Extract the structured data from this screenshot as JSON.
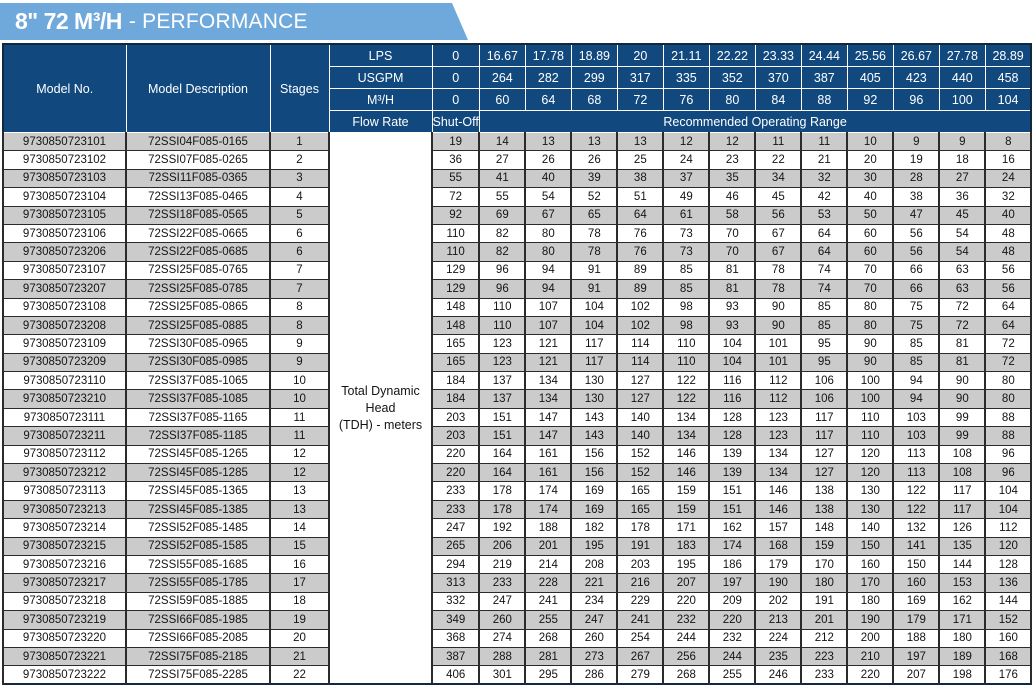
{
  "banner": {
    "title": "8\" 72 M³/H",
    "suffix": "- PERFORMANCE"
  },
  "colors": {
    "banner_blue": "#6FA9DC",
    "header_navy": "#11497F",
    "row_gray": "#CBCBCB",
    "row_white": "#FFFFFF",
    "grid_line": "#2B2B2B",
    "header_text": "#FFFFFF"
  },
  "header": {
    "model_no": "Model No.",
    "model_description": "Model Description",
    "stages": "Stages",
    "flow_rate": "Flow Rate",
    "shut_off": "Shut-Off",
    "recommended_range": "Recommended Operating Range",
    "tdh_line1": "Total Dynamic Head",
    "tdh_line2": "(TDH) - meters",
    "unit_rows": [
      {
        "label": "LPS",
        "values": [
          "0",
          "16.67",
          "17.78",
          "18.89",
          "20",
          "21.11",
          "22.22",
          "23.33",
          "24.44",
          "25.56",
          "26.67",
          "27.78",
          "28.89"
        ]
      },
      {
        "label": "USGPM",
        "values": [
          "0",
          "264",
          "282",
          "299",
          "317",
          "335",
          "352",
          "370",
          "387",
          "405",
          "423",
          "440",
          "458"
        ]
      },
      {
        "label": "M³/H",
        "values": [
          "0",
          "60",
          "64",
          "68",
          "72",
          "76",
          "80",
          "84",
          "88",
          "92",
          "96",
          "100",
          "104"
        ]
      }
    ]
  },
  "rows": [
    {
      "model": "9730850723101",
      "description": "72SSI04F085-0165",
      "stages": "1",
      "tdh": [
        19,
        14,
        13,
        13,
        13,
        12,
        12,
        11,
        11,
        10,
        9,
        9,
        8
      ]
    },
    {
      "model": "9730850723102",
      "description": "72SSI07F085-0265",
      "stages": "2",
      "tdh": [
        36,
        27,
        26,
        26,
        25,
        24,
        23,
        22,
        21,
        20,
        19,
        18,
        16
      ]
    },
    {
      "model": "9730850723103",
      "description": "72SSI11F085-0365",
      "stages": "3",
      "tdh": [
        55,
        41,
        40,
        39,
        38,
        37,
        35,
        34,
        32,
        30,
        28,
        27,
        24
      ]
    },
    {
      "model": "9730850723104",
      "description": "72SSI13F085-0465",
      "stages": "4",
      "tdh": [
        72,
        55,
        54,
        52,
        51,
        49,
        46,
        45,
        42,
        40,
        38,
        36,
        32
      ]
    },
    {
      "model": "9730850723105",
      "description": "72SSI18F085-0565",
      "stages": "5",
      "tdh": [
        92,
        69,
        67,
        65,
        64,
        61,
        58,
        56,
        53,
        50,
        47,
        45,
        40
      ]
    },
    {
      "model": "9730850723106",
      "description": "72SSI22F085-0665",
      "stages": "6",
      "tdh": [
        110,
        82,
        80,
        78,
        76,
        73,
        70,
        67,
        64,
        60,
        56,
        54,
        48
      ]
    },
    {
      "model": "9730850723206",
      "description": "72SSI22F085-0685",
      "stages": "6",
      "tdh": [
        110,
        82,
        80,
        78,
        76,
        73,
        70,
        67,
        64,
        60,
        56,
        54,
        48
      ]
    },
    {
      "model": "9730850723107",
      "description": "72SSI25F085-0765",
      "stages": "7",
      "tdh": [
        129,
        96,
        94,
        91,
        89,
        85,
        81,
        78,
        74,
        70,
        66,
        63,
        56
      ]
    },
    {
      "model": "9730850723207",
      "description": "72SSI25F085-0785",
      "stages": "7",
      "tdh": [
        129,
        96,
        94,
        91,
        89,
        85,
        81,
        78,
        74,
        70,
        66,
        63,
        56
      ]
    },
    {
      "model": "9730850723108",
      "description": "72SSI25F085-0865",
      "stages": "8",
      "tdh": [
        148,
        110,
        107,
        104,
        102,
        98,
        93,
        90,
        85,
        80,
        75,
        72,
        64
      ]
    },
    {
      "model": "9730850723208",
      "description": "72SSI25F085-0885",
      "stages": "8",
      "tdh": [
        148,
        110,
        107,
        104,
        102,
        98,
        93,
        90,
        85,
        80,
        75,
        72,
        64
      ]
    },
    {
      "model": "9730850723109",
      "description": "72SSI30F085-0965",
      "stages": "9",
      "tdh": [
        165,
        123,
        121,
        117,
        114,
        110,
        104,
        101,
        95,
        90,
        85,
        81,
        72
      ]
    },
    {
      "model": "9730850723209",
      "description": "72SSI30F085-0985",
      "stages": "9",
      "tdh": [
        165,
        123,
        121,
        117,
        114,
        110,
        104,
        101,
        95,
        90,
        85,
        81,
        72
      ]
    },
    {
      "model": "9730850723110",
      "description": "72SSI37F085-1065",
      "stages": "10",
      "tdh": [
        184,
        137,
        134,
        130,
        127,
        122,
        116,
        112,
        106,
        100,
        94,
        90,
        80
      ]
    },
    {
      "model": "9730850723210",
      "description": "72SSI37F085-1085",
      "stages": "10",
      "tdh": [
        184,
        137,
        134,
        130,
        127,
        122,
        116,
        112,
        106,
        100,
        94,
        90,
        80
      ]
    },
    {
      "model": "9730850723111",
      "description": "72SSI37F085-1165",
      "stages": "11",
      "tdh": [
        203,
        151,
        147,
        143,
        140,
        134,
        128,
        123,
        117,
        110,
        103,
        99,
        88
      ]
    },
    {
      "model": "9730850723211",
      "description": "72SSI37F085-1185",
      "stages": "11",
      "tdh": [
        203,
        151,
        147,
        143,
        140,
        134,
        128,
        123,
        117,
        110,
        103,
        99,
        88
      ]
    },
    {
      "model": "9730850723112",
      "description": "72SSI45F085-1265",
      "stages": "12",
      "tdh": [
        220,
        164,
        161,
        156,
        152,
        146,
        139,
        134,
        127,
        120,
        113,
        108,
        96
      ]
    },
    {
      "model": "9730850723212",
      "description": "72SSI45F085-1285",
      "stages": "12",
      "tdh": [
        220,
        164,
        161,
        156,
        152,
        146,
        139,
        134,
        127,
        120,
        113,
        108,
        96
      ]
    },
    {
      "model": "9730850723113",
      "description": "72SSI45F085-1365",
      "stages": "13",
      "tdh": [
        233,
        178,
        174,
        169,
        165,
        159,
        151,
        146,
        138,
        130,
        122,
        117,
        104
      ]
    },
    {
      "model": "9730850723213",
      "description": "72SSI45F085-1385",
      "stages": "13",
      "tdh": [
        233,
        178,
        174,
        169,
        165,
        159,
        151,
        146,
        138,
        130,
        122,
        117,
        104
      ]
    },
    {
      "model": "9730850723214",
      "description": "72SSI52F085-1485",
      "stages": "14",
      "tdh": [
        247,
        192,
        188,
        182,
        178,
        171,
        162,
        157,
        148,
        140,
        132,
        126,
        112
      ]
    },
    {
      "model": "9730850723215",
      "description": "72SSI52F085-1585",
      "stages": "15",
      "tdh": [
        265,
        206,
        201,
        195,
        191,
        183,
        174,
        168,
        159,
        150,
        141,
        135,
        120
      ]
    },
    {
      "model": "9730850723216",
      "description": "72SSI55F085-1685",
      "stages": "16",
      "tdh": [
        294,
        219,
        214,
        208,
        203,
        195,
        186,
        179,
        170,
        160,
        150,
        144,
        128
      ]
    },
    {
      "model": "9730850723217",
      "description": "72SSI55F085-1785",
      "stages": "17",
      "tdh": [
        313,
        233,
        228,
        221,
        216,
        207,
        197,
        190,
        180,
        170,
        160,
        153,
        136
      ]
    },
    {
      "model": "9730850723218",
      "description": "72SSI59F085-1885",
      "stages": "18",
      "tdh": [
        332,
        247,
        241,
        234,
        229,
        220,
        209,
        202,
        191,
        180,
        169,
        162,
        144
      ]
    },
    {
      "model": "9730850723219",
      "description": "72SSI66F085-1985",
      "stages": "19",
      "tdh": [
        349,
        260,
        255,
        247,
        241,
        232,
        220,
        213,
        201,
        190,
        179,
        171,
        152
      ]
    },
    {
      "model": "9730850723220",
      "description": "72SSI66F085-2085",
      "stages": "20",
      "tdh": [
        368,
        274,
        268,
        260,
        254,
        244,
        232,
        224,
        212,
        200,
        188,
        180,
        160
      ]
    },
    {
      "model": "9730850723221",
      "description": "72SSI75F085-2185",
      "stages": "21",
      "tdh": [
        387,
        288,
        281,
        273,
        267,
        256,
        244,
        235,
        223,
        210,
        197,
        189,
        168
      ]
    },
    {
      "model": "9730850723222",
      "description": "72SSI75F085-2285",
      "stages": "22",
      "tdh": [
        406,
        301,
        295,
        286,
        279,
        268,
        255,
        246,
        233,
        220,
        207,
        198,
        176
      ]
    }
  ]
}
